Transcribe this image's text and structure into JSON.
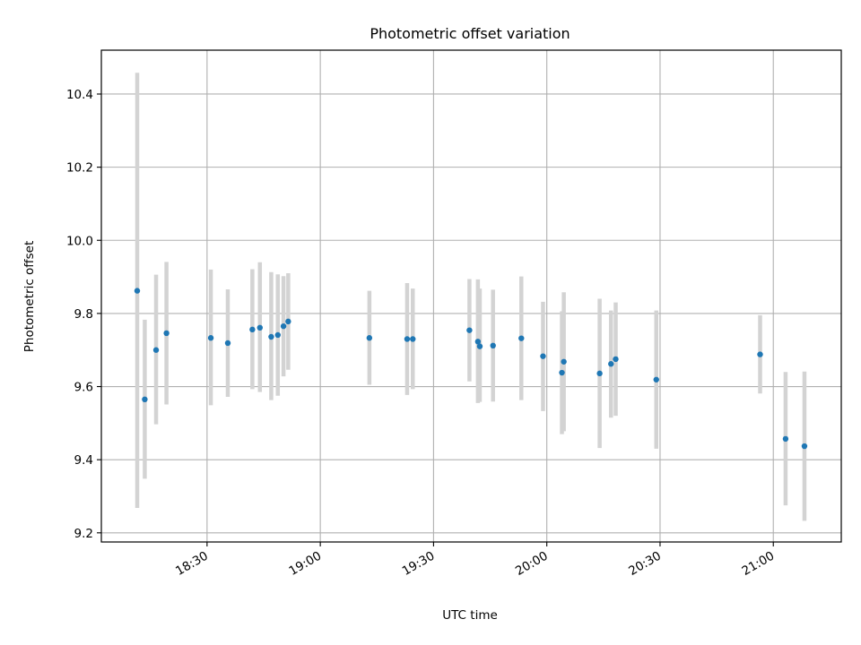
{
  "chart_data": {
    "type": "scatter",
    "title": "Photometric offset variation",
    "xlabel": "UTC time",
    "ylabel": "Photometric offset",
    "x_axis_type": "time",
    "xlim": [
      "18:02",
      "21:18"
    ],
    "ylim": [
      9.175,
      10.52
    ],
    "x_ticks": [
      "18:30",
      "19:00",
      "19:30",
      "20:00",
      "20:30",
      "21:00"
    ],
    "y_ticks": [
      9.2,
      9.4,
      9.6,
      9.8,
      10.0,
      10.2,
      10.4
    ],
    "y_tick_labels": [
      "9.2",
      "9.4",
      "9.6",
      "9.8",
      "10.0",
      "10.2",
      "10.4"
    ],
    "grid": true,
    "marker_color": "#1f77b4",
    "errorbar_color": "#d3d3d3",
    "series": [
      {
        "points": [
          {
            "x": "18:11:30",
            "y": 9.862,
            "ylow": 9.268,
            "yhigh": 10.458
          },
          {
            "x": "18:13:30",
            "y": 9.565,
            "ylow": 9.348,
            "yhigh": 9.783
          },
          {
            "x": "18:16:30",
            "y": 9.7,
            "ylow": 9.497,
            "yhigh": 9.906
          },
          {
            "x": "18:19:15",
            "y": 9.746,
            "ylow": 9.551,
            "yhigh": 9.941
          },
          {
            "x": "18:31:00",
            "y": 9.733,
            "ylow": 9.549,
            "yhigh": 9.92
          },
          {
            "x": "18:35:30",
            "y": 9.719,
            "ylow": 9.572,
            "yhigh": 9.866
          },
          {
            "x": "18:42:00",
            "y": 9.756,
            "ylow": 9.593,
            "yhigh": 9.921
          },
          {
            "x": "18:44:00",
            "y": 9.761,
            "ylow": 9.585,
            "yhigh": 9.94
          },
          {
            "x": "18:47:00",
            "y": 9.736,
            "ylow": 9.563,
            "yhigh": 9.913
          },
          {
            "x": "18:48:45",
            "y": 9.741,
            "ylow": 9.575,
            "yhigh": 9.907
          },
          {
            "x": "18:50:15",
            "y": 9.765,
            "ylow": 9.628,
            "yhigh": 9.902
          },
          {
            "x": "18:51:30",
            "y": 9.778,
            "ylow": 9.646,
            "yhigh": 9.91
          },
          {
            "x": "19:13:00",
            "y": 9.733,
            "ylow": 9.605,
            "yhigh": 9.862
          },
          {
            "x": "19:23:00",
            "y": 9.73,
            "ylow": 9.577,
            "yhigh": 9.883
          },
          {
            "x": "19:24:30",
            "y": 9.73,
            "ylow": 9.593,
            "yhigh": 9.868
          },
          {
            "x": "19:39:30",
            "y": 9.754,
            "ylow": 9.614,
            "yhigh": 9.894
          },
          {
            "x": "19:41:45",
            "y": 9.723,
            "ylow": 9.555,
            "yhigh": 9.893
          },
          {
            "x": "19:42:15",
            "y": 9.71,
            "ylow": 9.558,
            "yhigh": 9.868
          },
          {
            "x": "19:45:45",
            "y": 9.712,
            "ylow": 9.559,
            "yhigh": 9.865
          },
          {
            "x": "19:53:15",
            "y": 9.732,
            "ylow": 9.563,
            "yhigh": 9.901
          },
          {
            "x": "19:59:00",
            "y": 9.683,
            "ylow": 9.533,
            "yhigh": 9.832
          },
          {
            "x": "20:04:00",
            "y": 9.638,
            "ylow": 9.47,
            "yhigh": 9.806
          },
          {
            "x": "20:04:30",
            "y": 9.668,
            "ylow": 9.478,
            "yhigh": 9.858
          },
          {
            "x": "20:14:00",
            "y": 9.636,
            "ylow": 9.432,
            "yhigh": 9.84
          },
          {
            "x": "20:17:00",
            "y": 9.662,
            "ylow": 9.515,
            "yhigh": 9.808
          },
          {
            "x": "20:18:15",
            "y": 9.675,
            "ylow": 9.52,
            "yhigh": 9.83
          },
          {
            "x": "20:29:00",
            "y": 9.619,
            "ylow": 9.43,
            "yhigh": 9.808
          },
          {
            "x": "20:56:30",
            "y": 9.688,
            "ylow": 9.581,
            "yhigh": 9.795
          },
          {
            "x": "21:03:15",
            "y": 9.457,
            "ylow": 9.275,
            "yhigh": 9.64
          },
          {
            "x": "21:08:15",
            "y": 9.437,
            "ylow": 9.233,
            "yhigh": 9.641
          }
        ]
      }
    ]
  }
}
